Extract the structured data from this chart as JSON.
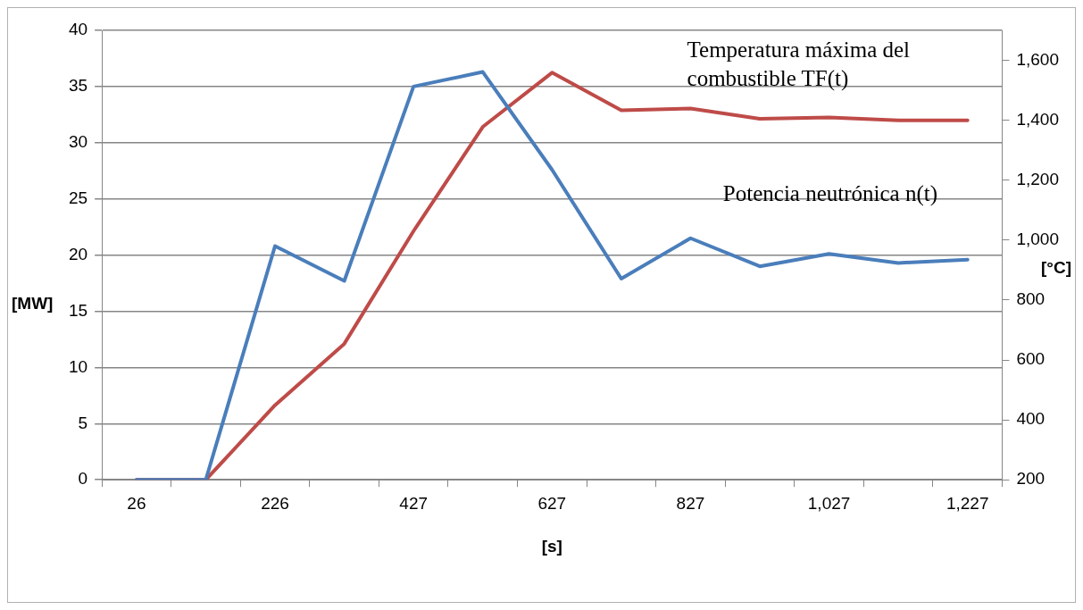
{
  "chart_data": {
    "type": "line",
    "xlabel": "[s]",
    "ylabel": "[MW]",
    "y2label": "[°C]",
    "categories": [
      "26",
      null,
      "226",
      null,
      "427",
      null,
      "627",
      null,
      "827",
      null,
      "1,027",
      null,
      "1,227"
    ],
    "series": [
      {
        "name": "Potencia neutrónica n(t)",
        "color": "#4a7ebb",
        "values": [
          0,
          0,
          20.8,
          17.7,
          35,
          36.3,
          27.6,
          17.9,
          21.5,
          19,
          20.1,
          19.3,
          19.6
        ]
      },
      {
        "name": "Temperatura máxima del combustible TF(t)",
        "color": "#be4b48",
        "axis": "y2",
        "values": [
          200,
          200,
          449,
          654,
          1030,
          1378,
          1559,
          1433,
          1439,
          1405,
          1409,
          1400,
          1400
        ]
      }
    ],
    "ylim": [
      0,
      40
    ],
    "yticks": [
      0,
      5,
      10,
      15,
      20,
      25,
      30,
      35,
      40
    ],
    "y2lim": [
      200,
      1700
    ],
    "y2ticks": [
      {
        "value": 200,
        "label": "200"
      },
      {
        "value": 400,
        "label": "400"
      },
      {
        "value": 600,
        "label": "600"
      },
      {
        "value": 800,
        "label": "800"
      },
      {
        "value": 1000,
        "label": "1,000"
      },
      {
        "value": 1200,
        "label": "1,200"
      },
      {
        "value": 1400,
        "label": "1,400"
      },
      {
        "value": 1600,
        "label": "1,600"
      }
    ],
    "grid": "y",
    "legend": false,
    "marker": "none",
    "line_style": "solid"
  }
}
